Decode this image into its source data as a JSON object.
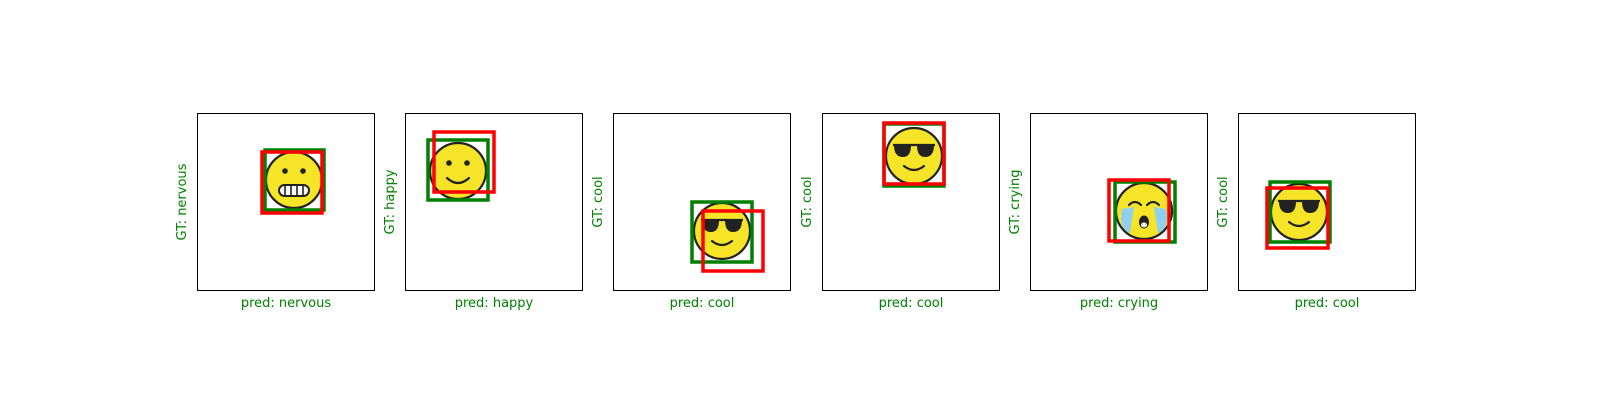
{
  "colors": {
    "truth": "#008000",
    "pred": "#ff0000",
    "label_ok": "#008000",
    "face": "#f5e427",
    "outline": "#222222",
    "tears": "#8fd0f0"
  },
  "panels": [
    {
      "gt_label": "GT: nervous",
      "pred_label": "pred: nervous",
      "emoji": "nervous-face-icon"
    },
    {
      "gt_label": "GT: happy",
      "pred_label": "pred: happy",
      "emoji": "happy-face-icon"
    },
    {
      "gt_label": "GT: cool",
      "pred_label": "pred: cool",
      "emoji": "cool-face-icon"
    },
    {
      "gt_label": "GT: cool",
      "pred_label": "pred: cool",
      "emoji": "cool-face-icon"
    },
    {
      "gt_label": "GT: crying",
      "pred_label": "pred: crying",
      "emoji": "crying-face-icon"
    },
    {
      "gt_label": "GT: cool",
      "pred_label": "pred: cool",
      "emoji": "cool-face-icon"
    }
  ]
}
